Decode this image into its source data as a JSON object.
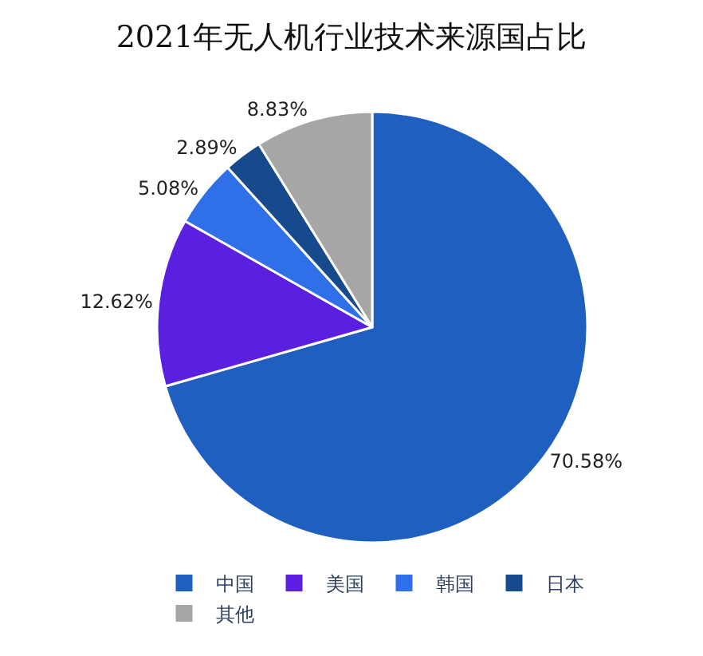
{
  "chart_data": {
    "type": "pie",
    "title": "2021年无人机行业技术来源国占比",
    "categories": [
      "中国",
      "美国",
      "韩国",
      "日本",
      "其他"
    ],
    "values": [
      70.58,
      12.62,
      5.08,
      2.89,
      8.83
    ],
    "colors": [
      "#1f5fbf",
      "#5b1fe0",
      "#2f6fe8",
      "#174a8c",
      "#a6a6a6"
    ],
    "value_labels": [
      "70.58%",
      "12.62%",
      "5.08%",
      "2.89%",
      "8.83%"
    ],
    "legend": "bottom"
  }
}
